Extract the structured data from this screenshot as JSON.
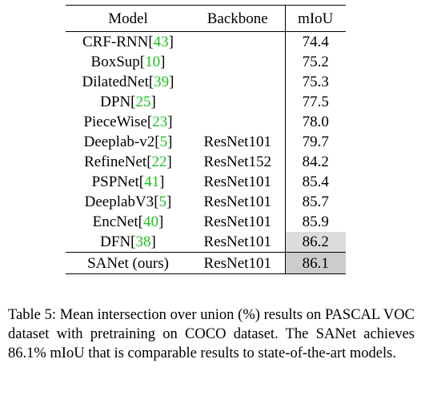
{
  "table": {
    "headers": {
      "model": "Model",
      "backbone": "Backbone",
      "miou": "mIoU"
    },
    "rows": [
      {
        "model": "CRF-RNN",
        "cite": "43",
        "backbone": "",
        "miou": "74.4"
      },
      {
        "model": "BoxSup",
        "cite": "10",
        "backbone": "",
        "miou": "75.2"
      },
      {
        "model": "DilatedNet",
        "cite": "39",
        "backbone": "",
        "miou": "75.3"
      },
      {
        "model": "DPN",
        "cite": "25",
        "backbone": "",
        "miou": "77.5"
      },
      {
        "model": "PieceWise",
        "cite": "23",
        "backbone": "",
        "miou": "78.0"
      },
      {
        "model": "Deeplab-v2",
        "cite": "5",
        "backbone": "ResNet101",
        "miou": "79.7"
      },
      {
        "model": "RefineNet",
        "cite": "22",
        "backbone": "ResNet152",
        "miou": "84.2"
      },
      {
        "model": "PSPNet",
        "cite": "41",
        "backbone": "ResNet101",
        "miou": "85.4"
      },
      {
        "model": "DeeplabV3",
        "cite": "5",
        "backbone": "ResNet101",
        "miou": "85.7"
      },
      {
        "model": "EncNet",
        "cite": "40",
        "backbone": "ResNet101",
        "miou": "85.9"
      },
      {
        "model": "DFN",
        "cite": "38",
        "backbone": "ResNet101",
        "miou": "86.2"
      }
    ],
    "ours": {
      "model": "SANet (ours)",
      "backbone": "ResNet101",
      "miou": "86.1"
    }
  },
  "caption": "Table 5: Mean intersection over union (%) results on PASCAL VOC dataset with pretraining on COCO dataset. The SANet achieves 86.1% mIoU that is comparable results to state-of-the-art models.",
  "colors": {
    "citation": "#19c419",
    "highlight_best": "#cccccc",
    "highlight_second": "#dcdcdc"
  }
}
